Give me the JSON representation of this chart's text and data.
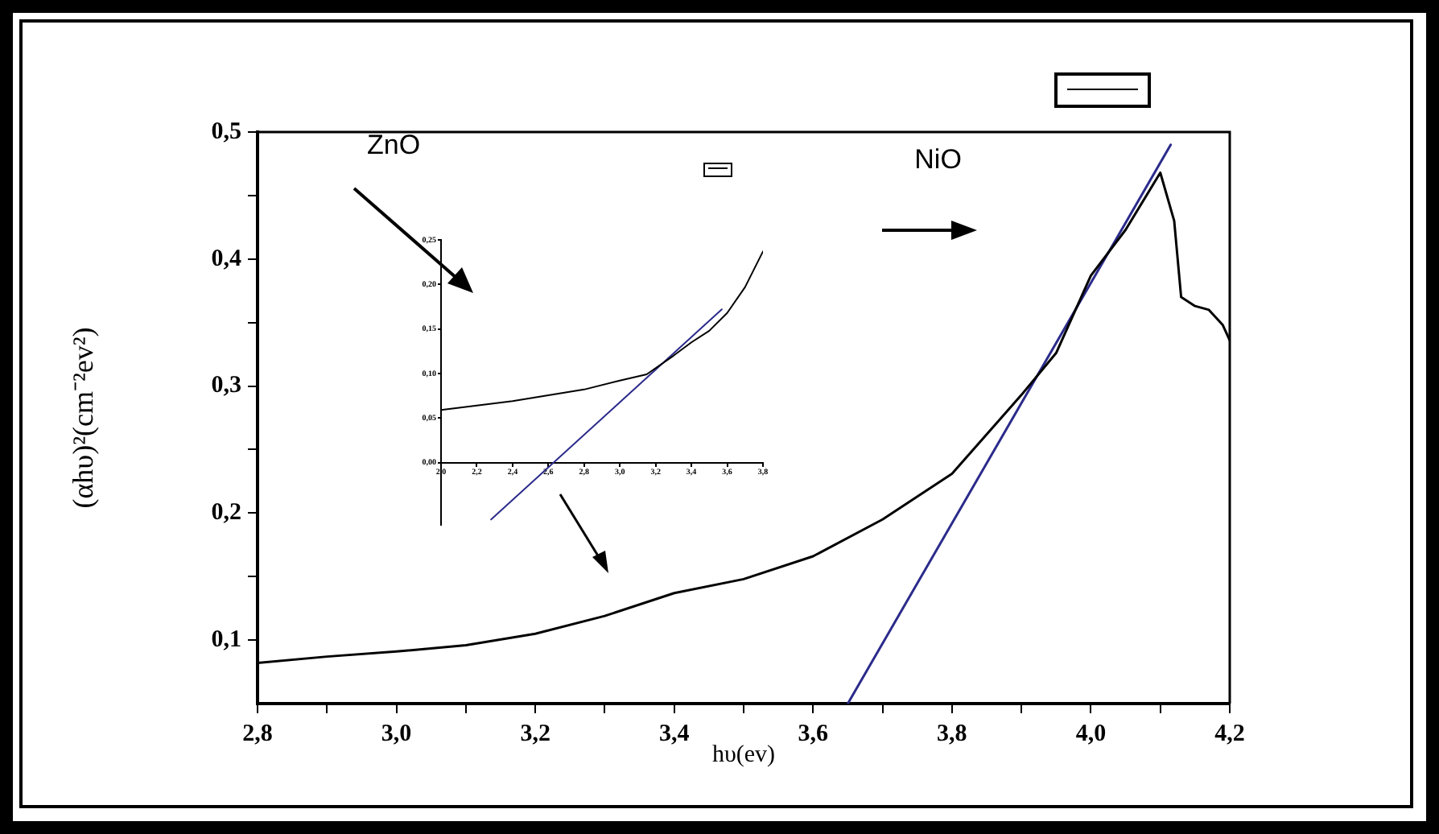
{
  "chart_data": [
    {
      "type": "line",
      "xlabel": "hυ(ev)",
      "ylabel": "(αhυ)²(cm⁻²ev²)",
      "marker": "none",
      "line_style": "solid",
      "grid": false,
      "xlim": [
        2.8,
        4.2
      ],
      "ylim": [
        0.05,
        0.5
      ],
      "xticks": [
        {
          "value": 2.8,
          "label": "2,8"
        },
        {
          "value": 2.9,
          "label": null
        },
        {
          "value": 3.0,
          "label": "3,0"
        },
        {
          "value": 3.1,
          "label": null
        },
        {
          "value": 3.2,
          "label": "3,2"
        },
        {
          "value": 3.3,
          "label": null
        },
        {
          "value": 3.4,
          "label": "3,4"
        },
        {
          "value": 3.5,
          "label": null
        },
        {
          "value": 3.6,
          "label": "3,6"
        },
        {
          "value": 3.7,
          "label": null
        },
        {
          "value": 3.8,
          "label": "3,8"
        },
        {
          "value": 3.9,
          "label": null
        },
        {
          "value": 4.0,
          "label": "4,0"
        },
        {
          "value": 4.1,
          "label": null
        },
        {
          "value": 4.2,
          "label": "4,2"
        }
      ],
      "yticks": [
        {
          "value": 0.1,
          "label": "0,1"
        },
        {
          "value": 0.15,
          "label": null
        },
        {
          "value": 0.2,
          "label": "0,2"
        },
        {
          "value": 0.25,
          "label": null
        },
        {
          "value": 0.3,
          "label": "0,3"
        },
        {
          "value": 0.35,
          "label": null
        },
        {
          "value": 0.4,
          "label": "0,4"
        },
        {
          "value": 0.45,
          "label": null
        },
        {
          "value": 0.5,
          "label": "0,5"
        }
      ],
      "annotations": [
        "ZnO",
        "NiO"
      ],
      "series": [
        {
          "color": "#000000",
          "x": [
            2.8,
            2.9,
            3.0,
            3.1,
            3.2,
            3.3,
            3.4,
            3.5,
            3.6,
            3.7,
            3.8,
            3.9,
            3.95,
            4.0,
            4.05,
            4.1,
            4.12,
            4.13,
            4.15,
            4.17,
            4.19,
            4.2
          ],
          "values": [
            0.082,
            0.087,
            0.091,
            0.096,
            0.105,
            0.119,
            0.137,
            0.148,
            0.166,
            0.195,
            0.231,
            0.293,
            0.326,
            0.387,
            0.423,
            0.468,
            0.43,
            0.37,
            0.363,
            0.36,
            0.348,
            0.336
          ]
        },
        {
          "color": "#2b2b8c",
          "x": [
            3.65,
            4.115
          ],
          "values": [
            0.05,
            0.49
          ]
        }
      ]
    },
    {
      "type": "line",
      "marker": "none",
      "line_style": "solid",
      "grid": false,
      "xlim": [
        2.0,
        3.8
      ],
      "ylim": [
        -0.07,
        0.25
      ],
      "xticks": [
        {
          "value": 2.0,
          "label": "2,0"
        },
        {
          "value": 2.2,
          "label": "2,2"
        },
        {
          "value": 2.4,
          "label": "2,4"
        },
        {
          "value": 2.6,
          "label": "2,6"
        },
        {
          "value": 2.8,
          "label": "2,8"
        },
        {
          "value": 3.0,
          "label": "3,0"
        },
        {
          "value": 3.2,
          "label": "3,2"
        },
        {
          "value": 3.4,
          "label": "3,4"
        },
        {
          "value": 3.6,
          "label": "3,6"
        },
        {
          "value": 3.8,
          "label": "3,8"
        }
      ],
      "yticks": [
        {
          "value": 0,
          "label": "0,00"
        },
        {
          "value": 0.05,
          "label": "0,05"
        },
        {
          "value": 0.1,
          "label": "0,10"
        },
        {
          "value": 0.15,
          "label": "0,15"
        },
        {
          "value": 0.2,
          "label": "0,20"
        },
        {
          "value": 0.25,
          "label": "0,25"
        }
      ],
      "series": [
        {
          "color": "#000000",
          "x": [
            2.0,
            2.4,
            2.8,
            3.0,
            3.15,
            3.3,
            3.4,
            3.5,
            3.6,
            3.7,
            3.8
          ],
          "values": [
            0.059,
            0.069,
            0.082,
            0.092,
            0.099,
            0.12,
            0.135,
            0.148,
            0.168,
            0.197,
            0.237
          ]
        },
        {
          "color": "#2b2b8c",
          "x": [
            2.28,
            3.57
          ],
          "values": [
            -0.064,
            0.172
          ]
        }
      ]
    }
  ]
}
